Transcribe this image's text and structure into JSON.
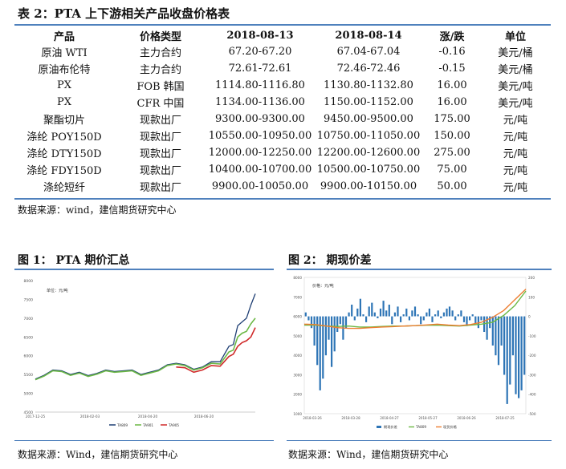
{
  "table": {
    "title": "表 2：PTA 上下游相关产品收盘价格表",
    "headers": [
      "产品",
      "价格类型",
      "2018-08-13",
      "2018-08-14",
      "涨/跌",
      "单位"
    ],
    "rows": [
      [
        "原油 WTI",
        "主力合约",
        "67.20-67.20",
        "67.04-67.04",
        "-0.16",
        "美元/桶"
      ],
      [
        "原油布伦特",
        "主力合约",
        "72.61-72.61",
        "72.46-72.46",
        "-0.15",
        "美元/桶"
      ],
      [
        "PX",
        "FOB 韩国",
        "1114.80-1116.80",
        "1130.80-1132.80",
        "16.00",
        "美元/吨"
      ],
      [
        "PX",
        "CFR 中国",
        "1134.00-1136.00",
        "1150.00-1152.00",
        "16.00",
        "美元/吨"
      ],
      [
        "聚酯切片",
        "现款出厂",
        "9300.00-9300.00",
        "9450.00-9500.00",
        "175.00",
        "元/吨"
      ],
      [
        "涤纶 POY150D",
        "现款出厂",
        "10550.00-10950.00",
        "10750.00-11050.00",
        "150.00",
        "元/吨"
      ],
      [
        "涤纶 DTY150D",
        "现款出厂",
        "12000.00-12250.00",
        "12200.00-12600.00",
        "275.00",
        "元/吨"
      ],
      [
        "涤纶 FDY150D",
        "现款出厂",
        "10400.00-10700.00",
        "10500.00-10750.00",
        "75.00",
        "元/吨"
      ],
      [
        "涤纶短纤",
        "现款出厂",
        "9900.00-10050.00",
        "9900.00-10150.00",
        "50.00",
        "元/吨"
      ]
    ],
    "source": "数据来源：wind，建信期货研究中心"
  },
  "figures": {
    "fig1_title": "图 1： PTA 期价汇总",
    "fig2_title": "图 2： 期现价差",
    "fig1_source": "数据来源：Wind，建信期货研究中心",
    "fig2_source": "数据来源：Wind，建信期货研究中心"
  },
  "colors": {
    "accent": "#4f81bd"
  },
  "chart_data": [
    {
      "type": "line",
      "title": "PTA 期价汇总",
      "unit_label": "单位：元/吨",
      "ylim": [
        4500,
        8000
      ],
      "y_ticks": [
        "8000",
        "7500",
        "7000",
        "6500",
        "6000",
        "5500",
        "5000",
        "4500"
      ],
      "x_ticks": [
        "2017-12-25",
        "2018-02-03",
        "2018-04-20",
        "2018-06-20"
      ],
      "x_range": [
        0,
        100
      ],
      "legend": [
        "TA809",
        "TA901",
        "TA905"
      ],
      "series": [
        {
          "name": "TA809",
          "color": "#1f3f74",
          "x": [
            0,
            4,
            8,
            12,
            16,
            20,
            24,
            28,
            32,
            36,
            40,
            44,
            48,
            52,
            56,
            60,
            64,
            68,
            72,
            76,
            80,
            84,
            88,
            90,
            92,
            94,
            96,
            98,
            100
          ],
          "y": [
            5380,
            5480,
            5620,
            5600,
            5500,
            5560,
            5470,
            5530,
            5620,
            5580,
            5600,
            5620,
            5500,
            5560,
            5620,
            5760,
            5800,
            5760,
            5640,
            5700,
            5840,
            5840,
            6250,
            6300,
            6800,
            6900,
            7000,
            7350,
            7650
          ]
        },
        {
          "name": "TA901",
          "color": "#6bb844",
          "x": [
            0,
            4,
            8,
            12,
            16,
            20,
            24,
            28,
            32,
            36,
            40,
            44,
            48,
            52,
            56,
            60,
            64,
            68,
            72,
            76,
            80,
            84,
            88,
            90,
            92,
            94,
            96,
            98,
            100
          ],
          "y": [
            5360,
            5460,
            5600,
            5580,
            5480,
            5540,
            5450,
            5510,
            5600,
            5560,
            5580,
            5600,
            5480,
            5540,
            5600,
            5740,
            5780,
            5740,
            5620,
            5680,
            5800,
            5780,
            6100,
            6150,
            6500,
            6600,
            6650,
            6850,
            7000
          ]
        },
        {
          "name": "TA905",
          "color": "#d02a2a",
          "x": [
            64,
            68,
            72,
            76,
            80,
            84,
            88,
            90,
            92,
            94,
            96,
            98,
            100
          ],
          "y": [
            5700,
            5680,
            5560,
            5620,
            5740,
            5720,
            5980,
            6040,
            6250,
            6350,
            6400,
            6500,
            6750
          ]
        }
      ]
    },
    {
      "type": "bar",
      "title": "期现价差",
      "unit_label": "价格：元/吨",
      "ylim_left": [
        1000,
        8000
      ],
      "ylim_right": [
        -500,
        200
      ],
      "y_ticks_left": [
        "8000",
        "7000",
        "6000",
        "5000",
        "4000",
        "3000",
        "2000",
        "1000"
      ],
      "y_ticks_right": [
        "200",
        "100",
        "0",
        "-100",
        "-200",
        "-300",
        "-400",
        "-500"
      ],
      "x_ticks": [
        "2018-03-26",
        "2018-03-28",
        "2018-04-27",
        "2018-05-27",
        "2018-06-26",
        "2018-07-25"
      ],
      "legend": [
        "期现价差",
        "TA809",
        "现货价格"
      ],
      "series": [
        {
          "name": "期现价差",
          "color": "#2e75b6",
          "axis": "right",
          "values": [
            20,
            -20,
            -60,
            -150,
            -250,
            -380,
            -320,
            -200,
            -120,
            -260,
            -180,
            -80,
            -40,
            -120,
            -60,
            20,
            60,
            -20,
            40,
            90,
            10,
            -30,
            50,
            70,
            20,
            -10,
            40,
            80,
            30,
            60,
            -40,
            20,
            50,
            -30,
            10,
            40,
            -20,
            30,
            50,
            10,
            -40,
            -20,
            20,
            40,
            -30,
            10,
            30,
            -10,
            20,
            40,
            50,
            30,
            -20,
            10,
            30,
            -30,
            -50,
            -20,
            10,
            -40,
            -60,
            -20,
            -80,
            -120,
            -60,
            -150,
            -200,
            -250,
            -150,
            -300,
            -450,
            -350,
            -200,
            -400,
            -420,
            -380,
            -300
          ]
        },
        {
          "name": "TA809",
          "color": "#6bb844",
          "axis": "left",
          "x": [
            0,
            5,
            10,
            15,
            20,
            25,
            30,
            35,
            40,
            45,
            50,
            55,
            60,
            65,
            70,
            75,
            80,
            85,
            90,
            95,
            100
          ],
          "y": [
            5550,
            5550,
            5500,
            5480,
            5500,
            5450,
            5450,
            5480,
            5500,
            5500,
            5520,
            5540,
            5550,
            5520,
            5500,
            5550,
            5600,
            5700,
            6050,
            6550,
            7300
          ]
        },
        {
          "name": "现货价格",
          "color": "#ed7d31",
          "axis": "left",
          "x": [
            0,
            5,
            10,
            15,
            20,
            25,
            30,
            35,
            40,
            45,
            50,
            55,
            60,
            65,
            70,
            75,
            80,
            85,
            90,
            95,
            100
          ],
          "y": [
            5600,
            5580,
            5500,
            5420,
            5380,
            5380,
            5420,
            5450,
            5470,
            5500,
            5520,
            5560,
            5600,
            5550,
            5520,
            5580,
            5700,
            5950,
            6300,
            6850,
            7400
          ]
        }
      ]
    }
  ]
}
